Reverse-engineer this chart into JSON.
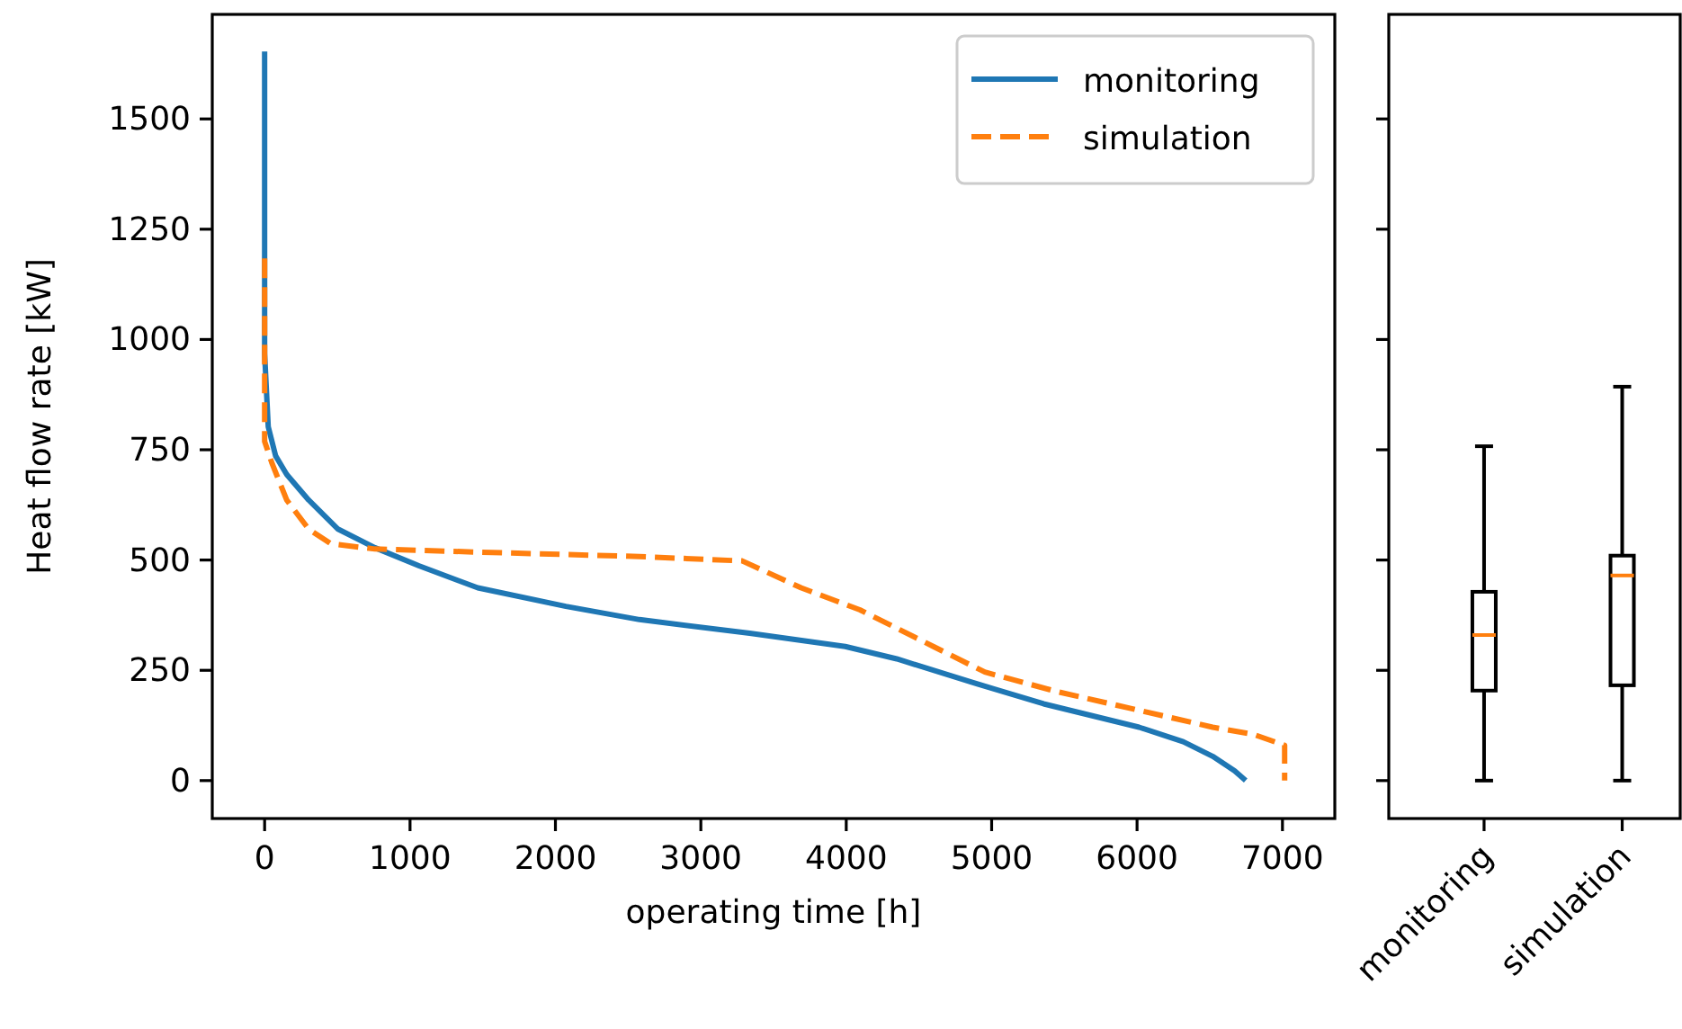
{
  "chart_data": [
    {
      "type": "line",
      "xlabel": "operating time [h]",
      "ylabel": "Heat flow rate [kW]",
      "xlim": [
        -360,
        7360
      ],
      "ylim": [
        -86,
        1737
      ],
      "xticks": [
        0,
        1000,
        2000,
        3000,
        4000,
        5000,
        6000,
        7000
      ],
      "yticks": [
        0,
        250,
        500,
        750,
        1000,
        1250,
        1500
      ],
      "legend": "top right",
      "grid": false,
      "series": [
        {
          "name": "monitoring",
          "color": "#1f77b4",
          "line_style": "solid",
          "x": [
            0,
            0,
            25,
            76,
            152,
            303,
            505,
            758,
            1061,
            1466,
            2072,
            2578,
            3336,
            3993,
            4347,
            4852,
            5357,
            6014,
            6318,
            6520,
            6671,
            6747
          ],
          "values": [
            1653,
            968,
            802,
            736,
            694,
            636,
            570,
            528,
            487,
            437,
            395,
            365,
            334,
            304,
            276,
            224,
            174,
            121,
            88,
            55,
            22,
            0
          ]
        },
        {
          "name": "simulation",
          "color": "#ff7f0e",
          "line_style": "dashed",
          "x": [
            0,
            0,
            51,
            152,
            303,
            455,
            758,
            1567,
            2578,
            3285,
            3690,
            4094,
            4599,
            4953,
            5458,
            5964,
            6520,
            6798,
            7015,
            7015
          ],
          "values": [
            1184,
            769,
            719,
            636,
            570,
            537,
            525,
            517,
            508,
            498,
            437,
            387,
            304,
            246,
            201,
            163,
            121,
            105,
            80,
            0
          ]
        }
      ]
    },
    {
      "type": "box",
      "categories": [
        "monitoring",
        "simulation"
      ],
      "ylim": [
        -86,
        1737
      ],
      "yticks": [
        0,
        250,
        500,
        750,
        1000,
        1250,
        1500
      ],
      "tick_labels": "x",
      "color": "#000000",
      "boxes": [
        {
          "low": 0,
          "q1": 204,
          "median": 330,
          "q3": 428,
          "high": 758
        },
        {
          "low": 0,
          "q1": 216,
          "median": 465,
          "q3": 510,
          "high": 893
        }
      ]
    }
  ]
}
